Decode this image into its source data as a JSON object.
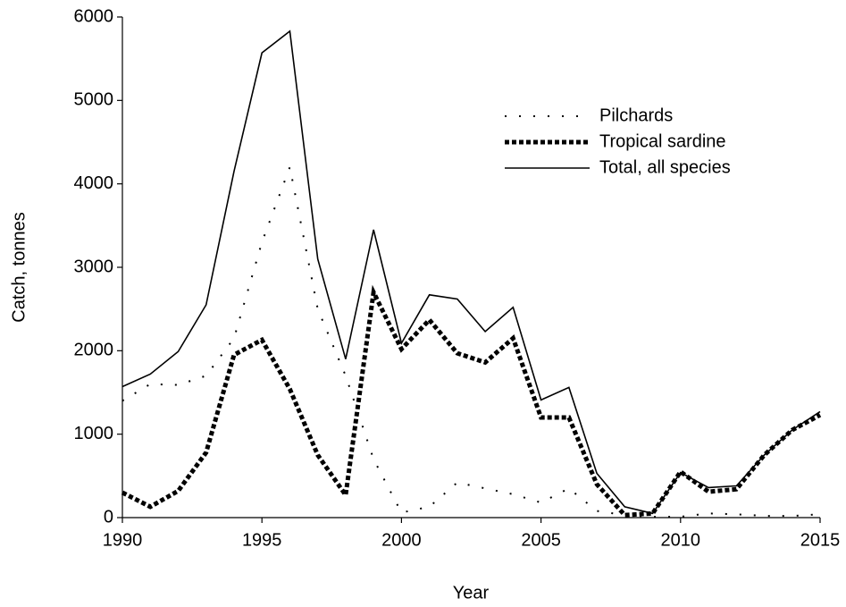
{
  "chart_data": {
    "type": "line",
    "x_label": "Year",
    "y_label": "Catch, tonnes",
    "x": [
      1990,
      1991,
      1992,
      1993,
      1994,
      1995,
      1996,
      1997,
      1998,
      1999,
      2000,
      2001,
      2002,
      2003,
      2004,
      2005,
      2006,
      2007,
      2008,
      2009,
      2010,
      2011,
      2012,
      2013,
      2014,
      2015
    ],
    "series": [
      {
        "name": "Pilchards",
        "color": "#000000",
        "linestyle": "sparse-dot",
        "values": [
          1400,
          1600,
          1590,
          1700,
          2150,
          3300,
          4200,
          2500,
          1700,
          700,
          60,
          130,
          420,
          350,
          280,
          180,
          350,
          80,
          30,
          10,
          10,
          50,
          40,
          20,
          20,
          40
        ]
      },
      {
        "name": "Tropical sardine",
        "color": "#000000",
        "linestyle": "heavy-dot",
        "values": [
          300,
          130,
          320,
          780,
          1950,
          2130,
          1540,
          750,
          270,
          2700,
          2020,
          2370,
          1970,
          1860,
          2150,
          1200,
          1200,
          400,
          30,
          50,
          550,
          310,
          340,
          750,
          1050,
          1230
        ]
      },
      {
        "name": "Total, all species",
        "color": "#000000",
        "linestyle": "solid",
        "values": [
          1570,
          1720,
          1990,
          2550,
          4150,
          5570,
          5830,
          3100,
          1900,
          3450,
          2090,
          2670,
          2620,
          2230,
          2520,
          1410,
          1560,
          530,
          130,
          50,
          540,
          360,
          380,
          750,
          1050,
          1270
        ]
      }
    ],
    "xlim": [
      1990,
      2015
    ],
    "xticks": [
      1990,
      1995,
      2000,
      2005,
      2010,
      2015
    ],
    "ylim": [
      0,
      6000
    ],
    "yticks": [
      0,
      1000,
      2000,
      3000,
      4000,
      5000,
      6000
    ],
    "grid": false,
    "legend_loc": "upper right"
  }
}
